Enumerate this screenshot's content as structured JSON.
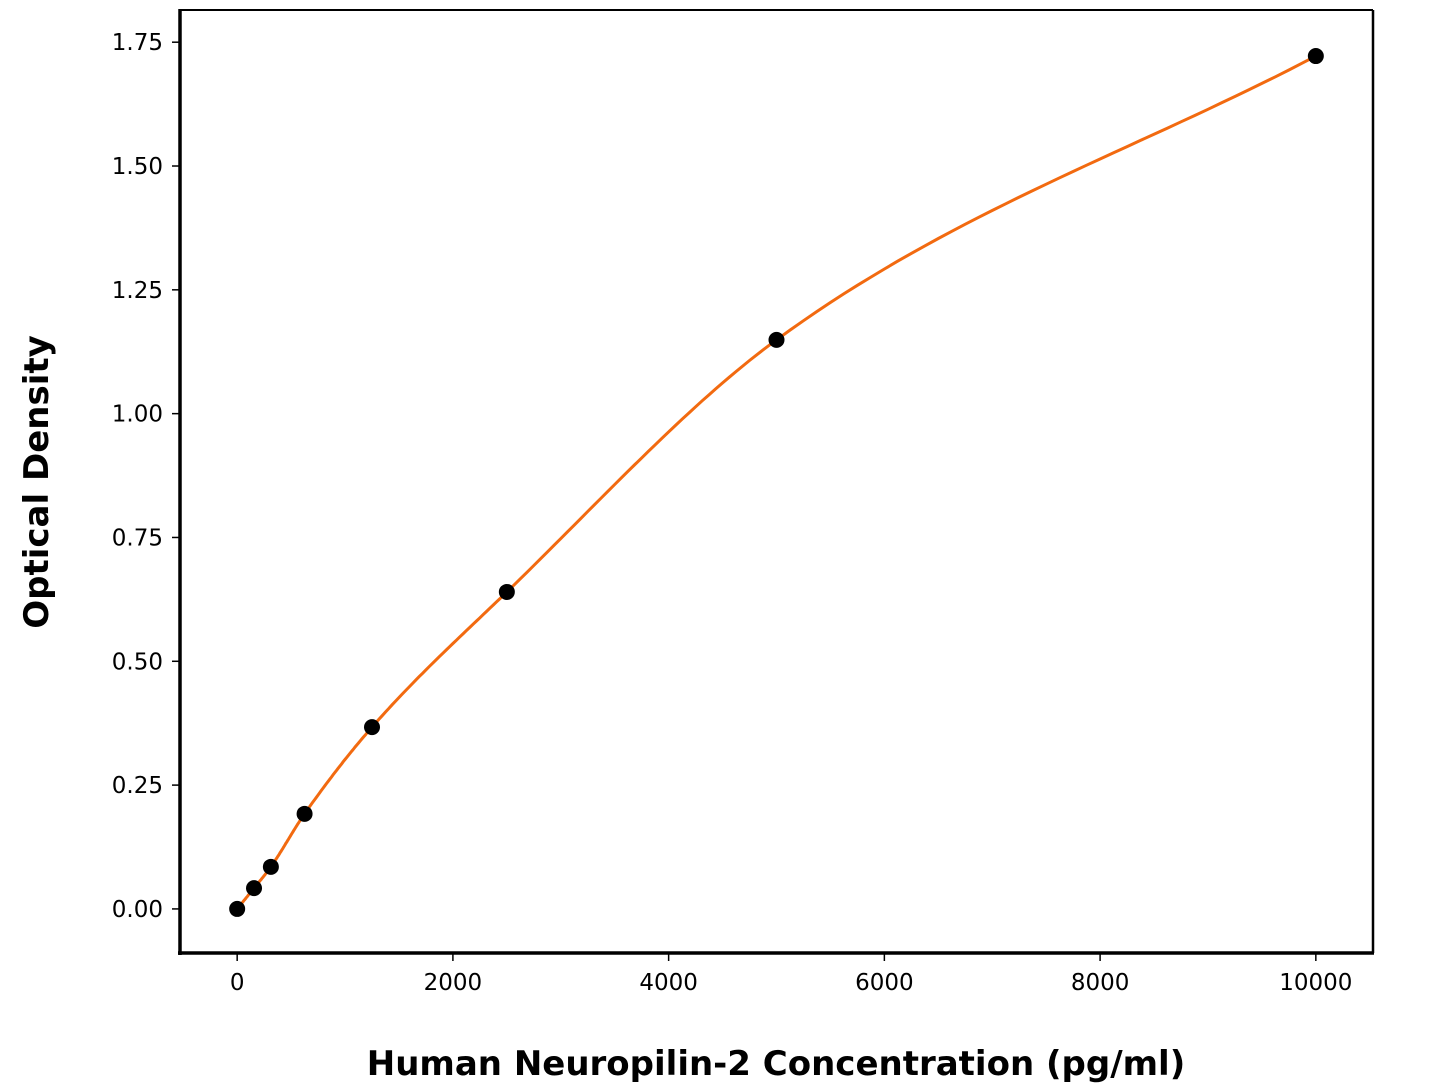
{
  "chart_data": {
    "type": "line",
    "title": "",
    "xlabel": "Human Neuropilin-2 Concentration (pg/ml)",
    "ylabel": "Optical Density",
    "xlim": [
      -530,
      10530
    ],
    "ylim": [
      -0.089,
      1.815
    ],
    "xticks": [
      0,
      2000,
      4000,
      6000,
      8000,
      10000
    ],
    "xtick_labels": [
      "0",
      "2000",
      "4000",
      "6000",
      "8000",
      "10000"
    ],
    "yticks": [
      0,
      0.25,
      0.5,
      0.75,
      1.0,
      1.25,
      1.5,
      1.75
    ],
    "ytick_labels": [
      "0.00",
      "0.25",
      "0.50",
      "0.75",
      "1.00",
      "1.25",
      "1.50",
      "1.75"
    ],
    "grid": false,
    "series": [
      {
        "points": {
          "x": [
            0,
            156.25,
            312.5,
            625,
            1250,
            2500,
            5000,
            10000
          ],
          "y": [
            0.0,
            0.042,
            0.085,
            0.192,
            0.367,
            0.64,
            1.149,
            1.722
          ]
        },
        "marker_color": "#000000",
        "fit_line_color": "#f26a10"
      }
    ]
  }
}
